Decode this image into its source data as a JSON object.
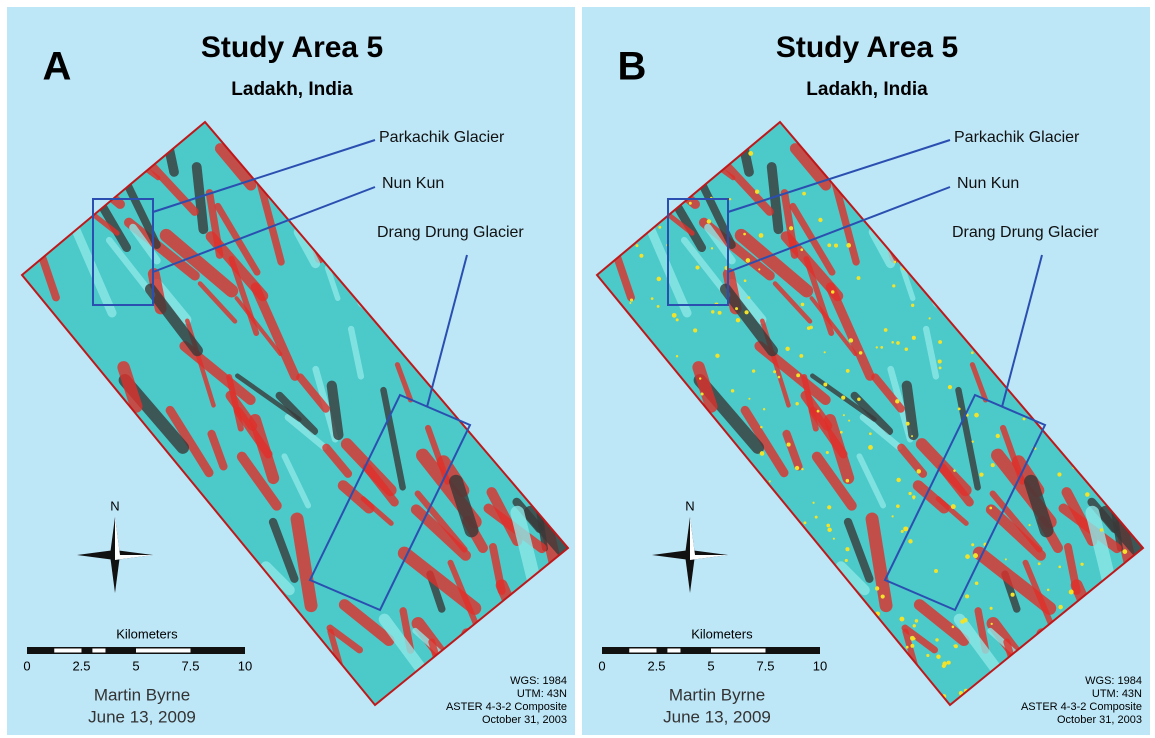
{
  "panels": [
    {
      "label": "A",
      "title": "Study Area 5",
      "subtitle": "Ladakh, India",
      "annotations": [
        "Parkachik Glacier",
        "Nun Kun",
        "Drang Drung Glacier"
      ],
      "north": "N",
      "scale": {
        "title": "Kilometers",
        "labels": [
          "0",
          "2.5",
          "5",
          "7.5",
          "10"
        ]
      },
      "author": "Martin Byrne",
      "date": "June 13, 2009",
      "metadata": [
        "WGS: 1984",
        "UTM: 43N",
        "ASTER 4-3-2 Composite",
        "October 31, 2003"
      ]
    },
    {
      "label": "B",
      "title": "Study Area 5",
      "subtitle": "Ladakh, India",
      "annotations": [
        "Parkachik Glacier",
        "Nun Kun",
        "Drang Drung Glacier"
      ],
      "north": "N",
      "scale": {
        "title": "Kilometers",
        "labels": [
          "0",
          "2.5",
          "5",
          "7.5",
          "10"
        ]
      },
      "author": "Martin Byrne",
      "date": "June 13, 2009",
      "metadata": [
        "WGS: 1984",
        "UTM: 43N",
        "ASTER 4-3-2 Composite",
        "October 31, 2003"
      ]
    }
  ]
}
